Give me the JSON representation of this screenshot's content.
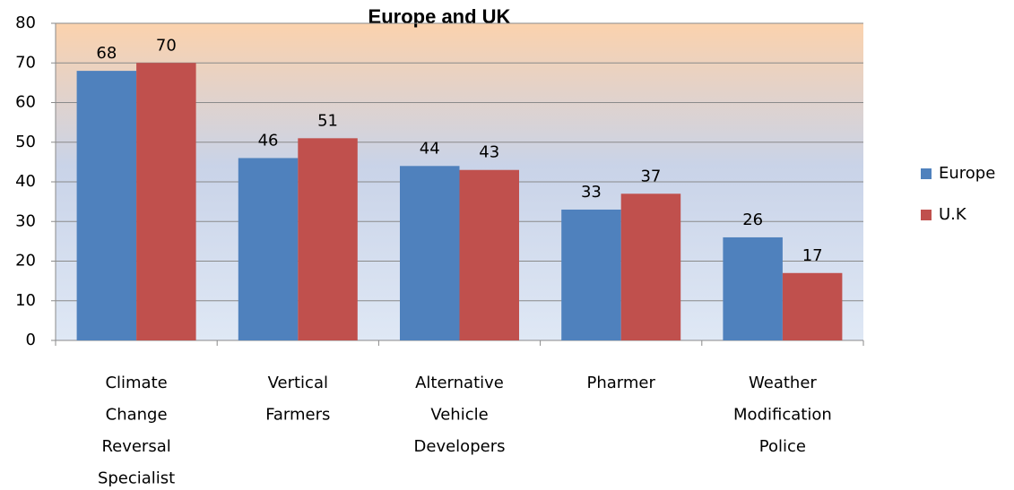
{
  "chart_data": {
    "type": "bar",
    "title": "Europe and UK",
    "categories": [
      "Climate Change Reversal Specialist",
      "Vertical Farmers",
      "Alternative Vehicle Developers",
      "Pharmer",
      "Weather Modification Police"
    ],
    "series": [
      {
        "name": "Europe",
        "color": "#4f81bd",
        "values": [
          68,
          46,
          44,
          33,
          26
        ]
      },
      {
        "name": "U.K",
        "color": "#c0504d",
        "values": [
          70,
          51,
          43,
          37,
          17
        ]
      }
    ],
    "ylim": [
      0,
      80
    ],
    "yticks": [
      0,
      10,
      20,
      30,
      40,
      50,
      60,
      70,
      80
    ],
    "grid": true,
    "legend": "right"
  }
}
